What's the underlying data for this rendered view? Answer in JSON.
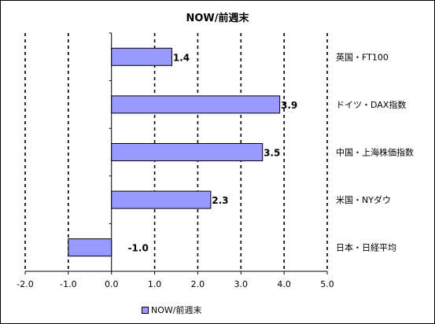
{
  "chart_data": {
    "type": "bar",
    "orientation": "horizontal",
    "title": "NOW/前週末",
    "categories": [
      "英国・FT100",
      "ドイツ・DAX指数",
      "中国・上海株価指数",
      "米国・NYダウ",
      "日本・日経平均"
    ],
    "series": [
      {
        "name": "NOW/前週末",
        "values": [
          1.4,
          3.9,
          3.5,
          2.3,
          -1.0
        ],
        "color": "#9999ff"
      }
    ],
    "data_labels": [
      "1.4",
      "3.9",
      "3.5",
      "2.3",
      "-1.0"
    ],
    "xlim": [
      -2.0,
      5.0
    ],
    "xticks": [
      "-2.0",
      "-1.0",
      "0.0",
      "1.0",
      "2.0",
      "3.0",
      "4.0",
      "5.0"
    ],
    "grid": "vertical dashed",
    "legend_position": "bottom"
  }
}
